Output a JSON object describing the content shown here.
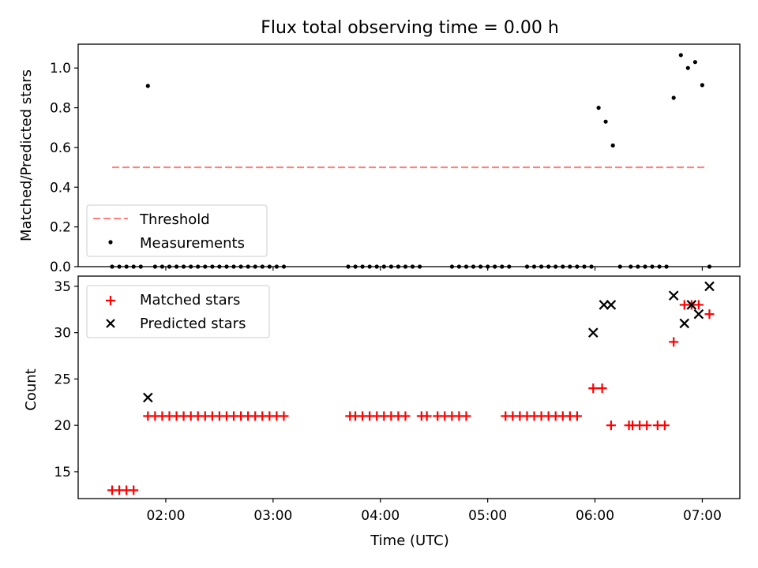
{
  "figure": {
    "title": "Flux total observing time = 0.00 h"
  },
  "chart_data": [
    {
      "type": "scatter",
      "ylabel": "Matched/Predicted stars",
      "ylim": [
        0,
        1.12
      ],
      "yticks": [
        0.0,
        0.2,
        0.4,
        0.6,
        0.8,
        1.0
      ],
      "ytick_labels": [
        "0.0",
        "0.2",
        "0.4",
        "0.6",
        "0.8",
        "1.0"
      ],
      "xlim": [
        "01:11",
        "07:21"
      ],
      "xticks": [
        "02:00",
        "03:00",
        "04:00",
        "05:00",
        "06:00",
        "07:00"
      ],
      "grid": false,
      "legend_location": "lower-left",
      "series": [
        {
          "name": "Threshold",
          "style": "dashed-line",
          "color": "#ff7f7f",
          "x": [
            "01:30",
            "07:03"
          ],
          "y": [
            0.5,
            0.5
          ]
        },
        {
          "name": "Measurements",
          "style": "dot",
          "color": "#000000",
          "x": [
            "01:30",
            "01:34",
            "01:38",
            "01:42",
            "01:46",
            "01:50",
            "01:54",
            "01:58",
            "02:02",
            "02:06",
            "02:10",
            "02:14",
            "02:18",
            "02:22",
            "02:26",
            "02:30",
            "02:34",
            "02:38",
            "02:42",
            "02:46",
            "02:50",
            "02:54",
            "02:58",
            "03:02",
            "03:06",
            "03:42",
            "03:46",
            "03:50",
            "03:54",
            "03:58",
            "04:02",
            "04:06",
            "04:10",
            "04:14",
            "04:18",
            "04:22",
            "04:40",
            "04:44",
            "04:48",
            "04:52",
            "04:56",
            "05:00",
            "05:04",
            "05:08",
            "05:12",
            "05:22",
            "05:26",
            "05:30",
            "05:34",
            "05:38",
            "05:42",
            "05:46",
            "05:50",
            "05:54",
            "05:58",
            "06:02",
            "06:06",
            "06:10",
            "06:14",
            "06:20",
            "06:24",
            "06:28",
            "06:32",
            "06:36",
            "06:40",
            "06:44",
            "06:48",
            "06:52",
            "06:56",
            "07:00",
            "07:04"
          ],
          "y": [
            0,
            0,
            0,
            0,
            0,
            0.91,
            0,
            0,
            0,
            0,
            0,
            0,
            0,
            0,
            0,
            0,
            0,
            0,
            0,
            0,
            0,
            0,
            0,
            0,
            0,
            0,
            0,
            0,
            0,
            0,
            0,
            0,
            0,
            0,
            0,
            0,
            0,
            0,
            0,
            0,
            0,
            0,
            0,
            0,
            0,
            0,
            0,
            0,
            0,
            0,
            0,
            0,
            0,
            0,
            0,
            0.8,
            0.73,
            0.61,
            0,
            0,
            0,
            0,
            0,
            0,
            0,
            0.85,
            1.065,
            1.0,
            1.03,
            0.914,
            0
          ],
          "x_positions_note": ""
        }
      ]
    },
    {
      "type": "scatter",
      "xlabel": "Time (UTC)",
      "ylabel": "Count",
      "ylim": [
        12.1,
        36.1
      ],
      "yticks": [
        15,
        20,
        25,
        30,
        35
      ],
      "ytick_labels": [
        "15",
        "20",
        "25",
        "30",
        "35"
      ],
      "xlim": [
        "01:11",
        "07:21"
      ],
      "xticks": [
        "02:00",
        "03:00",
        "04:00",
        "05:00",
        "06:00",
        "07:00"
      ],
      "xtick_labels": [
        "02:00",
        "03:00",
        "04:00",
        "05:00",
        "06:00",
        "07:00"
      ],
      "grid": false,
      "legend_location": "top-left",
      "series": [
        {
          "name": "Matched stars",
          "marker": "+",
          "color": "#ff0000",
          "points": [
            [
              "01:30",
              13
            ],
            [
              "01:34",
              13
            ],
            [
              "01:38",
              13
            ],
            [
              "01:42",
              13
            ],
            [
              "01:50",
              21
            ],
            [
              "01:54",
              21
            ],
            [
              "01:58",
              21
            ],
            [
              "02:02",
              21
            ],
            [
              "02:06",
              21
            ],
            [
              "02:10",
              21
            ],
            [
              "02:14",
              21
            ],
            [
              "02:18",
              21
            ],
            [
              "02:22",
              21
            ],
            [
              "02:26",
              21
            ],
            [
              "02:30",
              21
            ],
            [
              "02:34",
              21
            ],
            [
              "02:38",
              21
            ],
            [
              "02:42",
              21
            ],
            [
              "02:46",
              21
            ],
            [
              "02:50",
              21
            ],
            [
              "02:54",
              21
            ],
            [
              "02:58",
              21
            ],
            [
              "03:02",
              21
            ],
            [
              "03:06",
              21
            ],
            [
              "03:43",
              21
            ],
            [
              "03:46",
              21
            ],
            [
              "03:50",
              21
            ],
            [
              "03:54",
              21
            ],
            [
              "03:58",
              21
            ],
            [
              "04:02",
              21
            ],
            [
              "04:06",
              21
            ],
            [
              "04:10",
              21
            ],
            [
              "04:14",
              21
            ],
            [
              "04:23",
              21
            ],
            [
              "04:26",
              21
            ],
            [
              "04:32",
              21
            ],
            [
              "04:36",
              21
            ],
            [
              "04:40",
              21
            ],
            [
              "04:44",
              21
            ],
            [
              "04:48",
              21
            ],
            [
              "05:10",
              21
            ],
            [
              "05:14",
              21
            ],
            [
              "05:18",
              21
            ],
            [
              "05:22",
              21
            ],
            [
              "05:26",
              21
            ],
            [
              "05:30",
              21
            ],
            [
              "05:34",
              21
            ],
            [
              "05:38",
              21
            ],
            [
              "05:42",
              21
            ],
            [
              "05:46",
              21
            ],
            [
              "05:50",
              21
            ],
            [
              "05:59",
              24
            ],
            [
              "06:04",
              24
            ],
            [
              "06:09",
              20
            ],
            [
              "06:19",
              20
            ],
            [
              "06:21",
              20
            ],
            [
              "06:25",
              20
            ],
            [
              "06:29",
              20
            ],
            [
              "06:35",
              20
            ],
            [
              "06:39",
              20
            ],
            [
              "06:44",
              29
            ],
            [
              "06:50",
              33
            ],
            [
              "06:54",
              33
            ],
            [
              "06:58",
              33
            ],
            [
              "07:04",
              32
            ]
          ]
        },
        {
          "name": "Predicted stars",
          "marker": "x",
          "color": "#000000",
          "points": [
            [
              "01:50",
              23
            ],
            [
              "05:59",
              30
            ],
            [
              "06:05",
              33
            ],
            [
              "06:09",
              33
            ],
            [
              "06:44",
              34
            ],
            [
              "06:50",
              31
            ],
            [
              "06:54",
              33
            ],
            [
              "06:58",
              32
            ],
            [
              "07:04",
              35
            ]
          ]
        }
      ]
    }
  ]
}
